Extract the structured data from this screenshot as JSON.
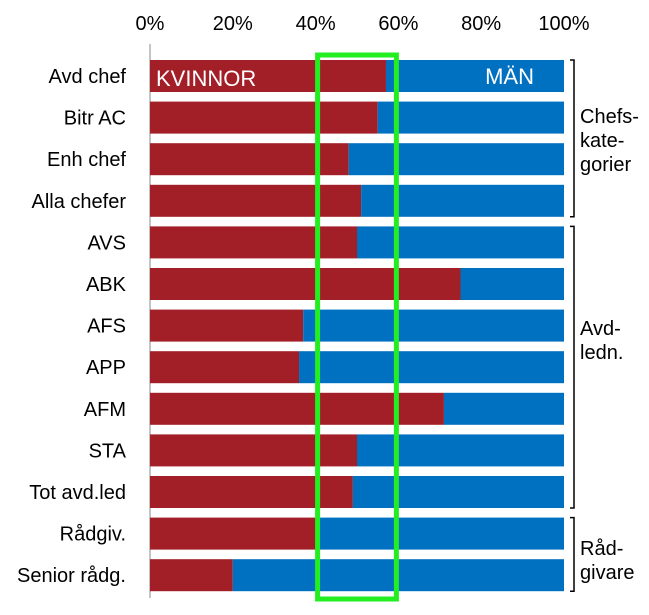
{
  "chart_data": {
    "type": "bar",
    "stacked": true,
    "orientation": "horizontal",
    "categories": [
      "Avd chef",
      "Bitr AC",
      "Enh chef",
      "Alla chefer",
      "AVS",
      "ABK",
      "AFS",
      "APP",
      "AFM",
      "STA",
      "Tot avd.led",
      "Rådgiv.",
      "Senior rådg."
    ],
    "series": [
      {
        "name": "KVINNOR",
        "color": "#A31F27",
        "values": [
          57,
          55,
          48,
          51,
          50,
          75,
          37,
          36,
          71,
          50,
          49,
          41,
          20
        ]
      },
      {
        "name": "MÄN",
        "color": "#0070C0",
        "values": [
          43,
          45,
          52,
          49,
          50,
          25,
          63,
          64,
          29,
          50,
          51,
          59,
          80
        ]
      }
    ],
    "xticks": [
      "0%",
      "20%",
      "40%",
      "60%",
      "80%",
      "100%"
    ],
    "xlim": [
      0,
      100
    ],
    "axis_position": "top",
    "highlight": {
      "range": [
        40,
        60
      ],
      "color": "#22EE22"
    },
    "groups": [
      {
        "label_lines": [
          "Chefs-",
          "kate-",
          "gorier"
        ],
        "first": 0,
        "last": 3
      },
      {
        "label_lines": [
          "Avd-",
          "ledn."
        ],
        "first": 4,
        "last": 10
      },
      {
        "label_lines": [
          "Råd-",
          "givare"
        ],
        "first": 11,
        "last": 12
      }
    ]
  }
}
